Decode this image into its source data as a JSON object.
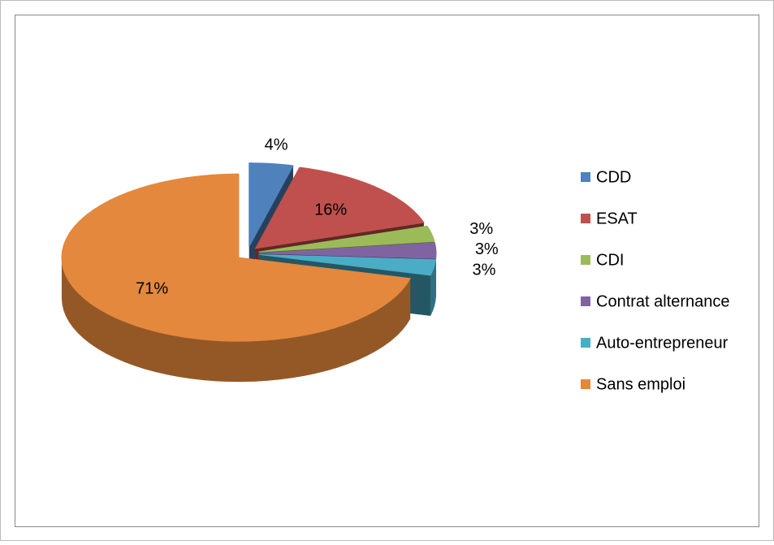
{
  "chart_data": {
    "type": "pie",
    "categories": [
      "CDD",
      "ESAT",
      "CDI",
      "Contrat alternance",
      "Auto-entrepreneur",
      "Sans emploi"
    ],
    "values": [
      4,
      16,
      3,
      3,
      3,
      71
    ],
    "value_labels": [
      "4%",
      "16%",
      "3%",
      "3%",
      "3%",
      "71%"
    ],
    "colors": [
      "#4f81bd",
      "#c0504d",
      "#9bbb59",
      "#8064a2",
      "#4bacc6",
      "#e3883d"
    ],
    "legend": "right"
  }
}
